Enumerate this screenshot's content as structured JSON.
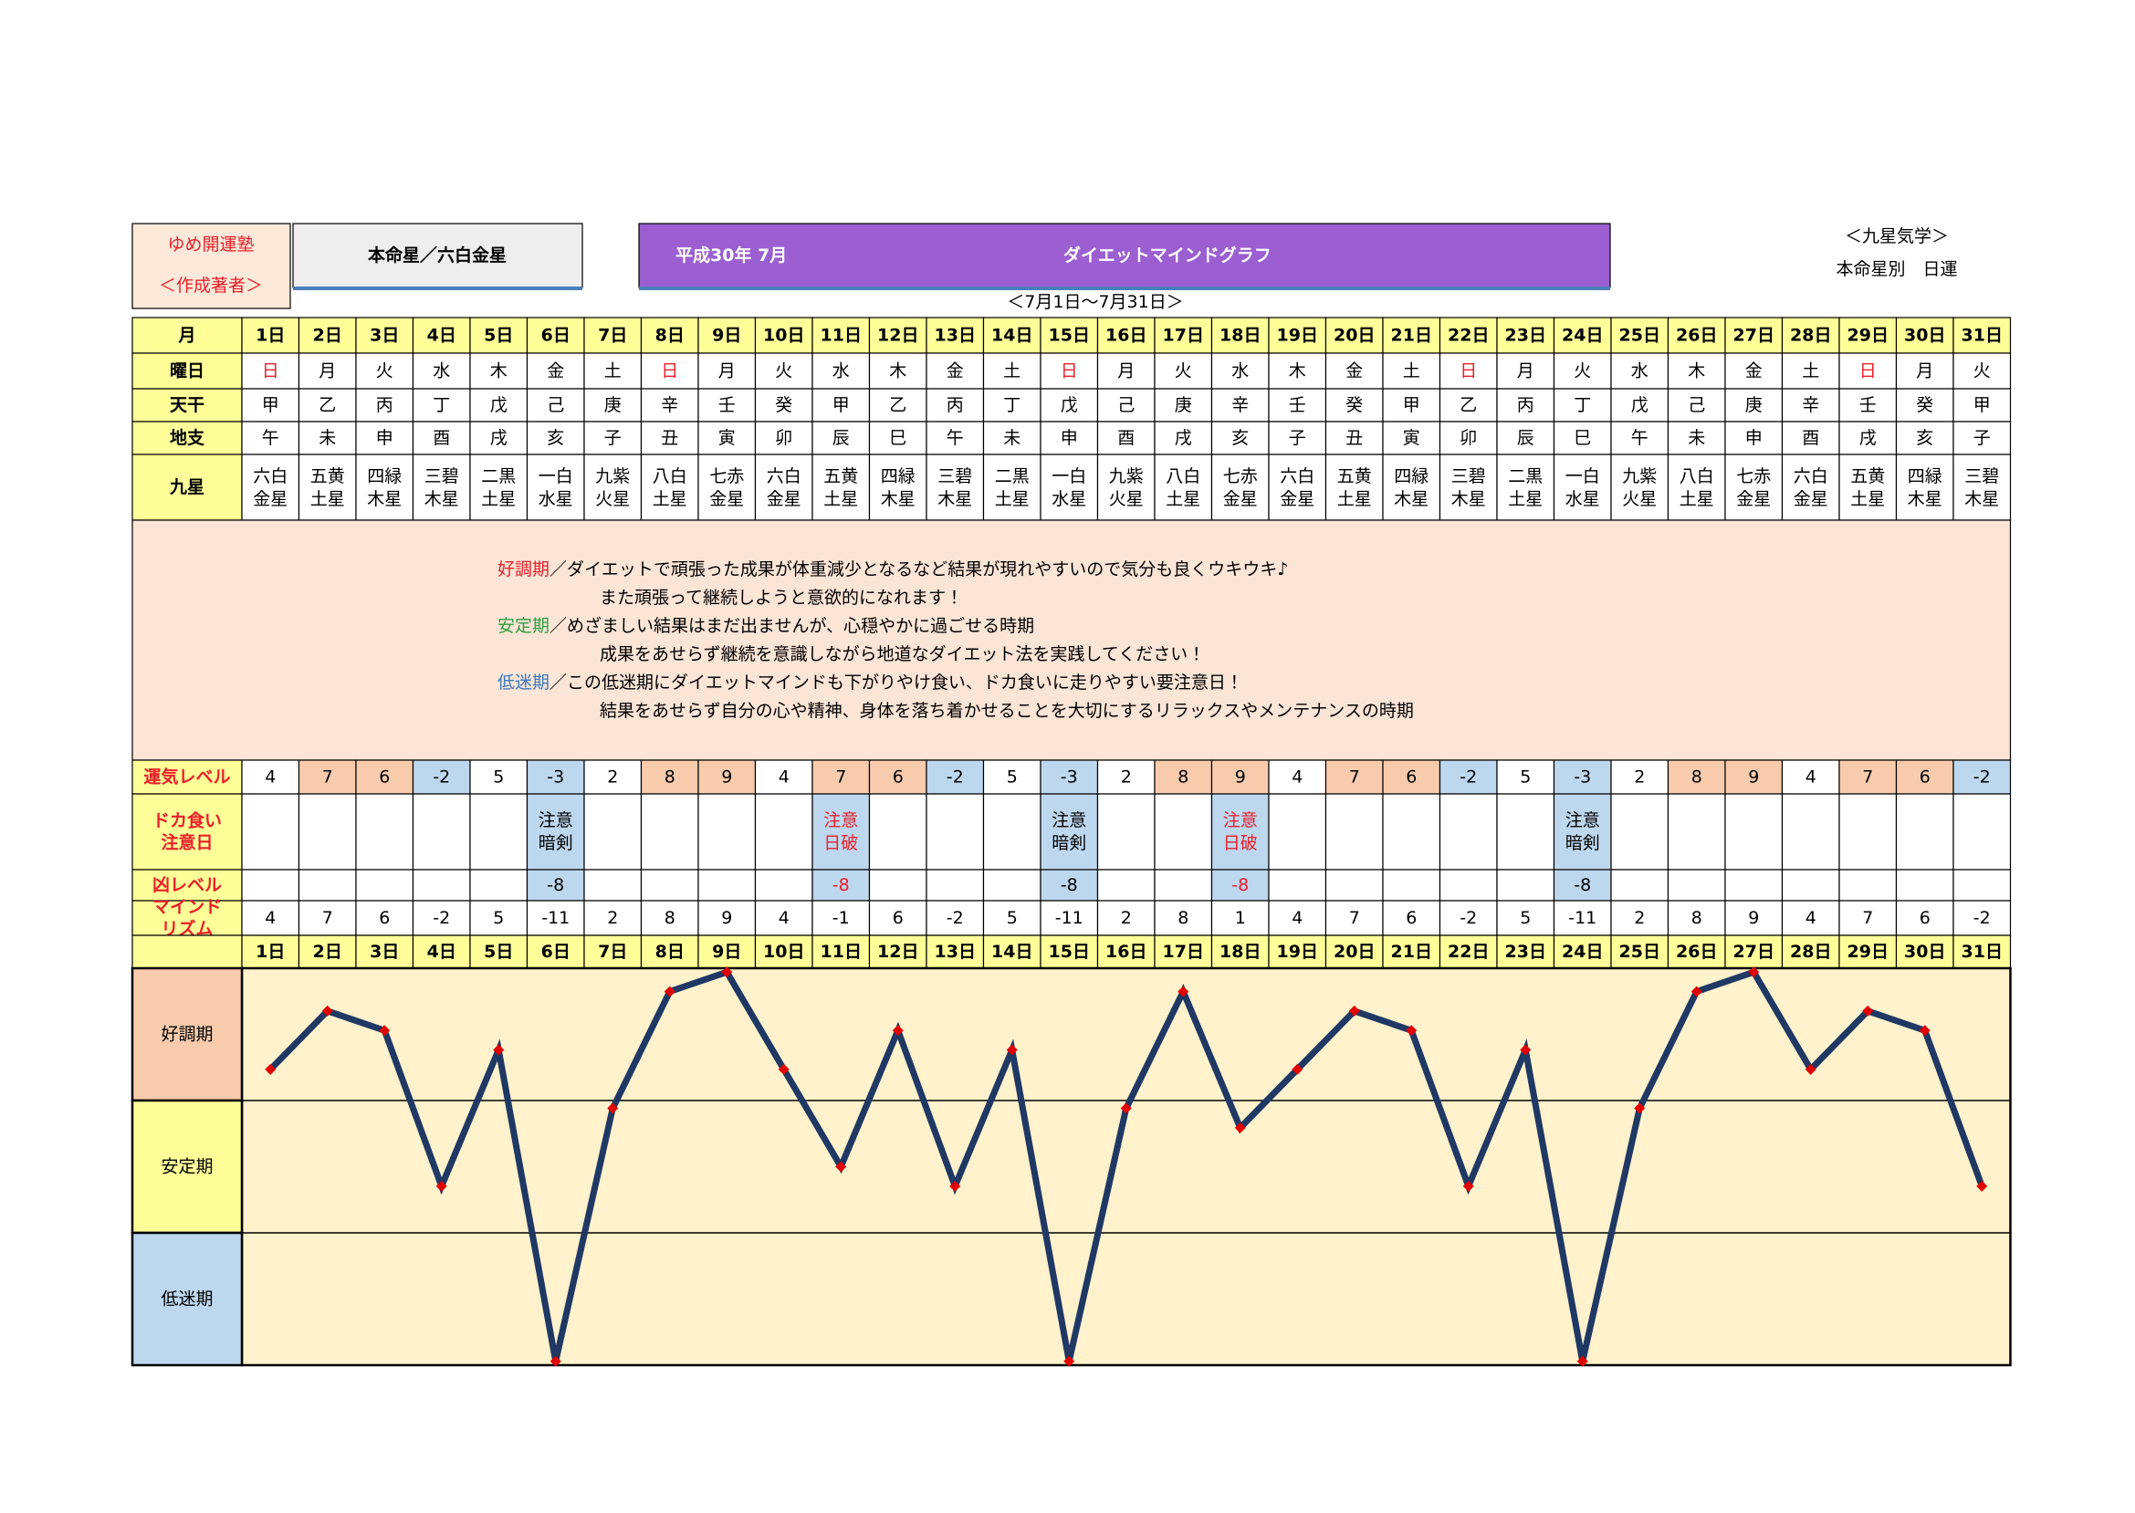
{
  "header": {
    "school": "ゆめ開運塾",
    "author": "＜作成著者＞",
    "honmei": "本命星／六白金星",
    "title": "平成30年 7月",
    "graph_name": "ダイエットマインドグラフ",
    "period": "＜7月1日～7月31日＞",
    "system": "＜九星気学＞",
    "kind": "本命星別　日運"
  },
  "table": {
    "labels": {
      "day": "月",
      "weekday": "曜日",
      "kan": "天干",
      "shi": "地支",
      "star": "九星",
      "level": "運気レベル",
      "doka": [
        "ドカ食い",
        "注意日"
      ],
      "kyo": "凶レベル",
      "mind": [
        "マインド",
        "リズム"
      ]
    },
    "weekdays": [
      "日",
      "月",
      "火",
      "水",
      "木",
      "金",
      "土",
      "日",
      "月",
      "火",
      "水",
      "木",
      "金",
      "土",
      "日",
      "月",
      "火",
      "水",
      "木",
      "金",
      "土",
      "日",
      "月",
      "火",
      "水",
      "木",
      "金",
      "土",
      "日",
      "月",
      "火"
    ],
    "kan": [
      "甲",
      "乙",
      "丙",
      "丁",
      "戊",
      "己",
      "庚",
      "辛",
      "壬",
      "癸",
      "甲",
      "乙",
      "丙",
      "丁",
      "戊",
      "己",
      "庚",
      "辛",
      "壬",
      "癸",
      "甲",
      "乙",
      "丙",
      "丁",
      "戊",
      "己",
      "庚",
      "辛",
      "壬",
      "癸",
      "甲"
    ],
    "shi": [
      "午",
      "未",
      "申",
      "酉",
      "戌",
      "亥",
      "子",
      "丑",
      "寅",
      "卯",
      "辰",
      "巳",
      "午",
      "未",
      "申",
      "酉",
      "戌",
      "亥",
      "子",
      "丑",
      "寅",
      "卯",
      "辰",
      "巳",
      "午",
      "未",
      "申",
      "酉",
      "戌",
      "亥",
      "子"
    ],
    "stars": [
      [
        "六白",
        "金星"
      ],
      [
        "五黄",
        "土星"
      ],
      [
        "四緑",
        "木星"
      ],
      [
        "三碧",
        "木星"
      ],
      [
        "二黒",
        "土星"
      ],
      [
        "一白",
        "水星"
      ],
      [
        "九紫",
        "火星"
      ],
      [
        "八白",
        "土星"
      ],
      [
        "七赤",
        "金星"
      ],
      [
        "六白",
        "金星"
      ],
      [
        "五黄",
        "土星"
      ],
      [
        "四緑",
        "木星"
      ],
      [
        "三碧",
        "木星"
      ],
      [
        "二黒",
        "土星"
      ],
      [
        "一白",
        "水星"
      ],
      [
        "九紫",
        "火星"
      ],
      [
        "八白",
        "土星"
      ],
      [
        "七赤",
        "金星"
      ],
      [
        "六白",
        "金星"
      ],
      [
        "五黄",
        "土星"
      ],
      [
        "四緑",
        "木星"
      ],
      [
        "三碧",
        "木星"
      ],
      [
        "二黒",
        "土星"
      ],
      [
        "一白",
        "水星"
      ],
      [
        "九紫",
        "火星"
      ],
      [
        "八白",
        "土星"
      ],
      [
        "七赤",
        "金星"
      ],
      [
        "六白",
        "金星"
      ],
      [
        "五黄",
        "土星"
      ],
      [
        "四緑",
        "木星"
      ],
      [
        "三碧",
        "木星"
      ]
    ],
    "legend": [
      {
        "term": "好調期",
        "color": "#e8202a",
        "text": "／ダイエットで頑張った成果が体重減少となるなど結果が現れやすいので気分も良くウキウキ♪",
        "more": "また頑張って継続しようと意欲的になれます！"
      },
      {
        "term": "安定期",
        "color": "#2e9e3e",
        "text": "／めざましい結果はまだ出ませんが、心穏やかに過ごせる時期",
        "more": "成果をあせらず継続を意識しながら地道なダイエット法を実践してください！"
      },
      {
        "term": "低迷期",
        "color": "#3b78c2",
        "text": "／この低迷期にダイエットマインドも下がりやけ食い、ドカ食いに走りやすい要注意日！",
        "more": "結果をあせらず自分の心や精神、身体を落ち着かせることを大切にするリラックスやメンテナンスの時期"
      }
    ],
    "level": [
      4,
      7,
      6,
      -2,
      5,
      -3,
      2,
      8,
      9,
      4,
      7,
      6,
      -2,
      5,
      -3,
      2,
      8,
      9,
      4,
      7,
      6,
      -2,
      5,
      -3,
      2,
      8,
      9,
      4,
      7,
      6,
      -2
    ],
    "level_colors": [
      null,
      "#f8cbad",
      "#f8cbad",
      "#bdd7ee",
      null,
      "#bdd7ee",
      null,
      "#f8cbad",
      "#f8cbad",
      null,
      "#f8cbad",
      "#f8cbad",
      "#bdd7ee",
      null,
      "#bdd7ee",
      null,
      "#f8cbad",
      "#f8cbad",
      null,
      "#f8cbad",
      "#f8cbad",
      "#bdd7ee",
      null,
      "#bdd7ee",
      null,
      "#f8cbad",
      "#f8cbad",
      null,
      "#f8cbad",
      "#f8cbad",
      "#bdd7ee"
    ],
    "doka": [
      null,
      null,
      null,
      null,
      null,
      {
        "lines": [
          "注意",
          "暗剣"
        ],
        "color": "#000000"
      },
      null,
      null,
      null,
      null,
      {
        "lines": [
          "注意",
          "日破"
        ],
        "color": "#e8202a"
      },
      null,
      null,
      null,
      {
        "lines": [
          "注意",
          "暗剣"
        ],
        "color": "#000000"
      },
      null,
      null,
      {
        "lines": [
          "注意",
          "日破"
        ],
        "color": "#e8202a"
      },
      null,
      null,
      null,
      null,
      null,
      {
        "lines": [
          "注意",
          "暗剣"
        ],
        "color": "#000000"
      },
      null,
      null,
      null,
      null,
      null,
      null,
      null
    ],
    "kyo": [
      null,
      null,
      null,
      null,
      null,
      {
        "value": -8,
        "color": "#000000"
      },
      null,
      null,
      null,
      null,
      {
        "value": -8,
        "color": "#e8202a"
      },
      null,
      null,
      null,
      {
        "value": -8,
        "color": "#000000"
      },
      null,
      null,
      {
        "value": -8,
        "color": "#e8202a"
      },
      null,
      null,
      null,
      null,
      null,
      {
        "value": -8,
        "color": "#000000"
      },
      null,
      null,
      null,
      null,
      null,
      null,
      null
    ]
  },
  "chart_data": {
    "type": "line",
    "categories": [
      "1日",
      "2日",
      "3日",
      "4日",
      "5日",
      "6日",
      "7日",
      "8日",
      "9日",
      "10日",
      "11日",
      "12日",
      "13日",
      "14日",
      "15日",
      "16日",
      "17日",
      "18日",
      "19日",
      "20日",
      "21日",
      "22日",
      "23日",
      "24日",
      "25日",
      "26日",
      "27日",
      "28日",
      "29日",
      "30日",
      "31日"
    ],
    "values": [
      4,
      7,
      6,
      -2,
      5,
      -11,
      2,
      8,
      9,
      4,
      -1,
      6,
      -2,
      5,
      -11,
      2,
      8,
      1,
      4,
      7,
      6,
      -2,
      5,
      -11,
      2,
      8,
      9,
      4,
      7,
      6,
      -2
    ],
    "bands": [
      {
        "name": "好調期",
        "color": "#f8cbad"
      },
      {
        "name": "安定期",
        "color": "#ffff99"
      },
      {
        "name": "低迷期",
        "color": "#bdd7ee"
      }
    ],
    "ylim": [
      -11.2,
      9.2
    ],
    "color": "#1f3864",
    "marker_color": "#e00000",
    "background": "#fff2cc"
  }
}
